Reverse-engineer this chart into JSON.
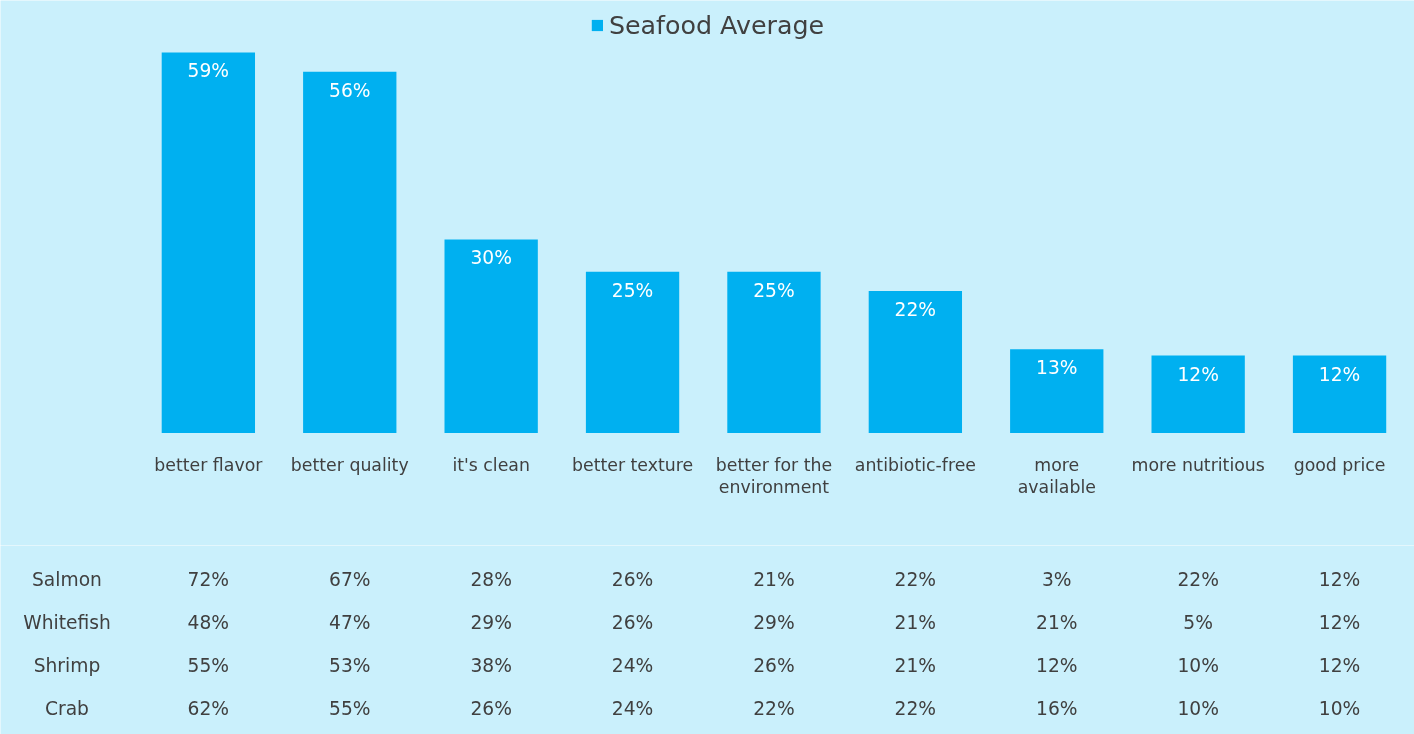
{
  "chart_data": [
    {
      "type": "bar",
      "categories": [
        "better flavor",
        "better quality",
        "it's clean",
        "better texture",
        "better for the\nenvironment",
        "antibiotic-free",
        "more\navailable",
        "more nutritious",
        "good price"
      ],
      "series": [
        {
          "name": "Seafood Average",
          "color": "#00b0f0",
          "values": [
            59,
            56,
            30,
            25,
            25,
            22,
            13,
            12,
            12
          ],
          "value_labels": [
            "59%",
            "56%",
            "30%",
            "25%",
            "25%",
            "22%",
            "13%",
            "12%",
            "12%"
          ]
        }
      ],
      "legend": "top",
      "grid": false
    },
    {
      "type": "other",
      "annotations": [
        "Salmon",
        "72%",
        "67%",
        "28%",
        "26%",
        "21%",
        "22%",
        "3%",
        "22%",
        "12%",
        "Whitefish",
        "48%",
        "47%",
        "29%",
        "26%",
        "29%",
        "21%",
        "21%",
        "5%",
        "12%",
        "Shrimp",
        "55%",
        "53%",
        "38%",
        "24%",
        "26%",
        "21%",
        "12%",
        "10%",
        "12%",
        "Crab",
        "62%",
        "55%",
        "26%",
        "24%",
        "22%",
        "22%",
        "16%",
        "10%",
        "10%"
      ]
    }
  ]
}
